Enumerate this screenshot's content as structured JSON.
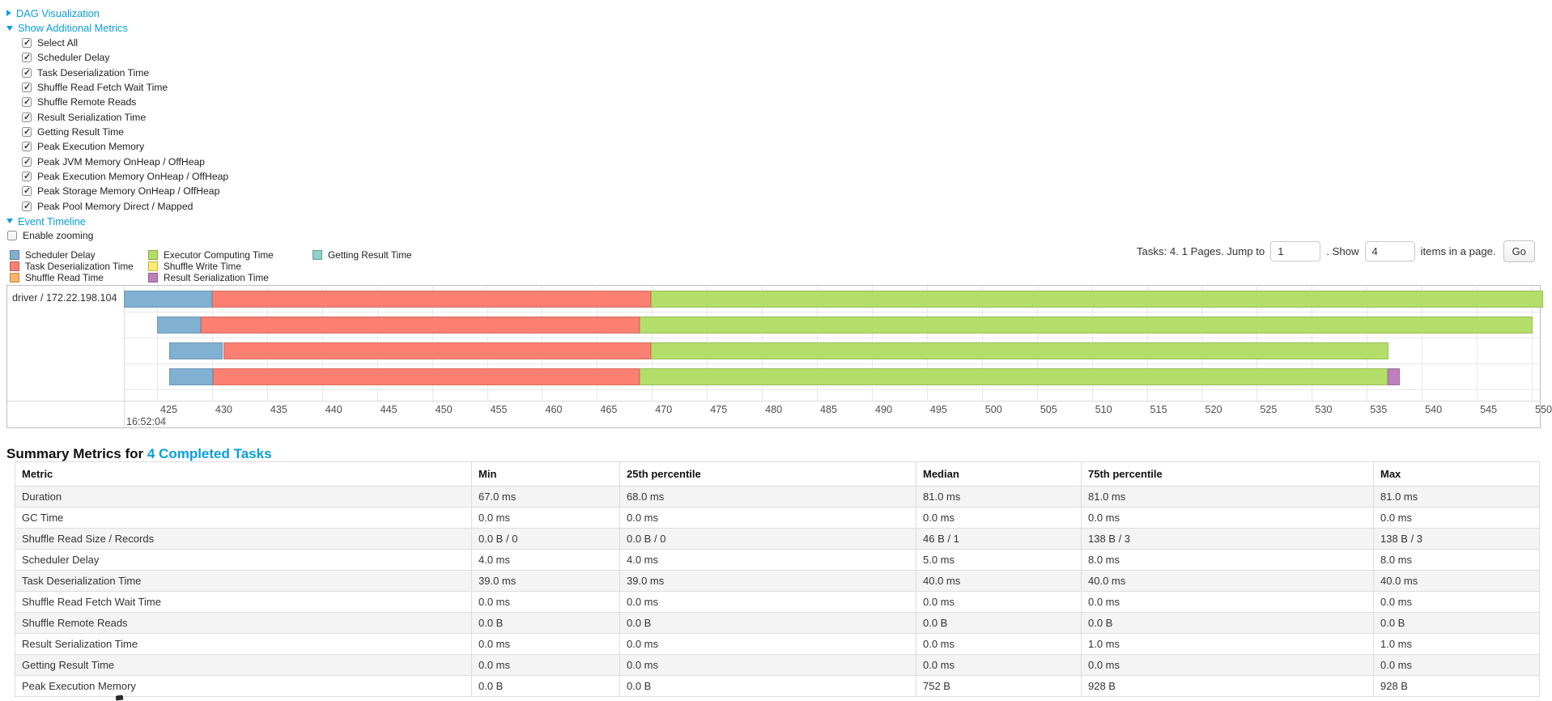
{
  "accent_color": "#0a9ed9",
  "controls": {
    "dag": {
      "label": "DAG Visualization",
      "state": "collapsed"
    },
    "metrics": {
      "label": "Show Additional Metrics",
      "state": "expanded"
    },
    "checkboxes": [
      "Select All",
      "Scheduler Delay",
      "Task Deserialization Time",
      "Shuffle Read Fetch Wait Time",
      "Shuffle Remote Reads",
      "Result Serialization Time",
      "Getting Result Time",
      "Peak Execution Memory",
      "Peak JVM Memory OnHeap / OffHeap",
      "Peak Execution Memory OnHeap / OffHeap",
      "Peak Storage Memory OnHeap / OffHeap",
      "Peak Pool Memory Direct / Mapped"
    ],
    "event_timeline": {
      "label": "Event Timeline",
      "state": "expanded"
    },
    "enable_zooming": {
      "label": "Enable zooming",
      "checked": false
    }
  },
  "legend": {
    "items": [
      {
        "key": "scheduler_delay",
        "label": "Scheduler Delay",
        "color": "#80B1D3",
        "col": 0
      },
      {
        "key": "task_deserialization",
        "label": "Task Deserialization Time",
        "color": "#FB8072",
        "col": 0
      },
      {
        "key": "shuffle_read",
        "label": "Shuffle Read Time",
        "color": "#FDB462",
        "col": 0
      },
      {
        "key": "executor_computing",
        "label": "Executor Computing Time",
        "color": "#B3DE69",
        "col": 1
      },
      {
        "key": "shuffle_write",
        "label": "Shuffle Write Time",
        "color": "#FFED6F",
        "col": 1
      },
      {
        "key": "result_serialization",
        "label": "Result Serialization Time",
        "color": "#BC80BD",
        "col": 1
      },
      {
        "key": "getting_result",
        "label": "Getting Result Time",
        "color": "#8DD3C7",
        "col": 2
      }
    ]
  },
  "paginator": {
    "prefix": "Tasks: 4. 1 Pages. Jump to",
    "jump_value": "1",
    "mid": ". Show",
    "show_value": "4",
    "suffix": "items in a page.",
    "go_label": "Go"
  },
  "chart_data": {
    "type": "timeline",
    "group_label": "driver / 172.22.198.104",
    "major_time_label": "16:52:04",
    "axis": {
      "start": 425,
      "end": 550,
      "step": 5,
      "unit": "ms (within 16:52:04)"
    },
    "tasks": [
      {
        "segments": [
          {
            "type": "scheduler_delay",
            "start": 422.0,
            "end": 430.0
          },
          {
            "type": "task_deserialization",
            "start": 430.0,
            "end": 469.9
          },
          {
            "type": "executor_computing",
            "start": 469.9,
            "end": 551.0
          }
        ]
      },
      {
        "segments": [
          {
            "type": "scheduler_delay",
            "start": 425.0,
            "end": 429.0
          },
          {
            "type": "task_deserialization",
            "start": 429.0,
            "end": 468.9
          },
          {
            "type": "executor_computing",
            "start": 468.9,
            "end": 550.1
          }
        ]
      },
      {
        "segments": [
          {
            "type": "scheduler_delay",
            "start": 426.1,
            "end": 431.0
          },
          {
            "type": "task_deserialization",
            "start": 431.0,
            "end": 469.9
          },
          {
            "type": "executor_computing",
            "start": 469.9,
            "end": 537.0
          }
        ]
      },
      {
        "segments": [
          {
            "type": "scheduler_delay",
            "start": 426.1,
            "end": 430.1
          },
          {
            "type": "task_deserialization",
            "start": 430.1,
            "end": 468.9
          },
          {
            "type": "executor_computing",
            "start": 468.9,
            "end": 536.9
          },
          {
            "type": "result_serialization",
            "start": 536.9,
            "end": 538.0
          }
        ]
      }
    ]
  },
  "summary": {
    "title_prefix": "Summary Metrics for",
    "title_link": "4 Completed Tasks",
    "columns": [
      "Metric",
      "Min",
      "25th percentile",
      "Median",
      "75th percentile",
      "Max"
    ],
    "rows": [
      [
        "Duration",
        "67.0 ms",
        "68.0 ms",
        "81.0 ms",
        "81.0 ms",
        "81.0 ms"
      ],
      [
        "GC Time",
        "0.0 ms",
        "0.0 ms",
        "0.0 ms",
        "0.0 ms",
        "0.0 ms"
      ],
      [
        "Shuffle Read Size / Records",
        "0.0 B / 0",
        "0.0 B / 0",
        "46 B / 1",
        "138 B / 3",
        "138 B / 3"
      ],
      [
        "Scheduler Delay",
        "4.0 ms",
        "4.0 ms",
        "5.0 ms",
        "8.0 ms",
        "8.0 ms"
      ],
      [
        "Task Deserialization Time",
        "39.0 ms",
        "39.0 ms",
        "40.0 ms",
        "40.0 ms",
        "40.0 ms"
      ],
      [
        "Shuffle Read Fetch Wait Time",
        "0.0 ms",
        "0.0 ms",
        "0.0 ms",
        "0.0 ms",
        "0.0 ms"
      ],
      [
        "Shuffle Remote Reads",
        "0.0 B",
        "0.0 B",
        "0.0 B",
        "0.0 B",
        "0.0 B"
      ],
      [
        "Result Serialization Time",
        "0.0 ms",
        "0.0 ms",
        "0.0 ms",
        "1.0 ms",
        "1.0 ms"
      ],
      [
        "Getting Result Time",
        "0.0 ms",
        "0.0 ms",
        "0.0 ms",
        "0.0 ms",
        "0.0 ms"
      ],
      [
        "Peak Execution Memory",
        "0.0 B",
        "0.0 B",
        "752 B",
        "928 B",
        "928 B"
      ]
    ]
  }
}
